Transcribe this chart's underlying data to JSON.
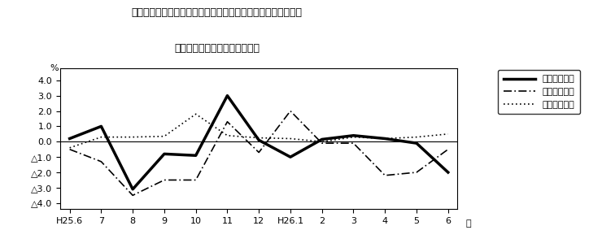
{
  "title_line1": "第４図　賃金、労働時間、常用雇用指数　対前年同月比の推移",
  "title_line2": "（規模５人以上　調査産業計）",
  "ylabel": "%",
  "x_labels": [
    "H25.6",
    "7",
    "8",
    "9",
    "10",
    "11",
    "12",
    "H26.1",
    "2",
    "3",
    "4",
    "5",
    "6"
  ],
  "yticks": [
    4.0,
    3.0,
    2.0,
    1.0,
    0.0,
    -1.0,
    -2.0,
    -3.0,
    -4.0
  ],
  "ytick_labels": [
    "4.0",
    "3.0",
    "2.0",
    "1.0",
    "0.0",
    "△1.0",
    "△2.0",
    "△3.0",
    "△4.0"
  ],
  "ylim": [
    -4.4,
    4.8
  ],
  "line1_label": "現金給与総額",
  "line2_label": "総実労働時間",
  "line3_label": "常用雇用指数",
  "line1_values": [
    0.2,
    1.0,
    -3.1,
    -0.8,
    -0.9,
    3.0,
    0.1,
    -1.0,
    0.15,
    0.4,
    0.2,
    -0.1,
    -2.0
  ],
  "line2_values": [
    -0.5,
    -1.3,
    -3.5,
    -2.5,
    -2.5,
    1.3,
    -0.7,
    2.0,
    -0.1,
    -0.1,
    -2.2,
    -2.0,
    -0.5
  ],
  "line3_values": [
    -0.4,
    0.3,
    0.3,
    0.35,
    1.8,
    0.4,
    0.25,
    0.2,
    0.0,
    0.3,
    0.2,
    0.3,
    0.5
  ],
  "bg_color": "#ffffff",
  "figwidth": 7.4,
  "figheight": 3.1,
  "dpi": 100
}
